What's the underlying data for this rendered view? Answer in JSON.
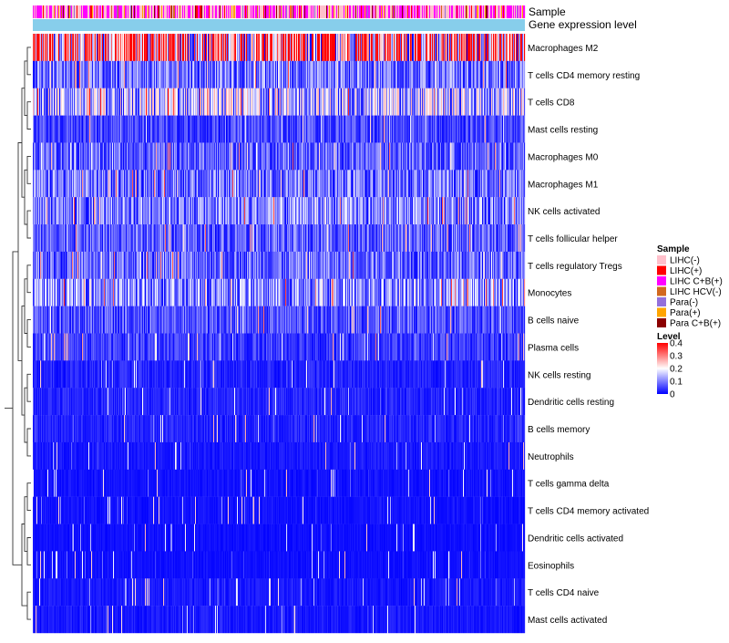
{
  "chart_data": {
    "type": "heatmap",
    "title": "",
    "annotation_tracks": [
      "Sample",
      "Gene expression level"
    ],
    "rows": [
      "Macrophages M2",
      "T cells CD4 memory resting",
      "T cells CD8",
      "Mast cells resting",
      "Macrophages M0",
      "Macrophages M1",
      "NK cells activated",
      "T cells follicular helper",
      "T cells regulatory  Tregs",
      "Monocytes",
      "B cells naive",
      "Plasma cells",
      "NK cells resting",
      "Dendritic cells resting",
      "B cells memory",
      "Neutrophils",
      "T cells gamma delta",
      "T cells CD4 memory activated",
      "Dendritic cells activated",
      "Eosinophils",
      "T cells CD4 naive",
      "Mast cells activated"
    ],
    "row_typical_level": [
      0.3,
      0.1,
      0.16,
      0.06,
      0.08,
      0.1,
      0.11,
      0.08,
      0.09,
      0.12,
      0.07,
      0.05,
      0.03,
      0.03,
      0.03,
      0.02,
      0.015,
      0.015,
      0.012,
      0.012,
      0.02,
      0.02
    ],
    "column_count": 540,
    "legend": {
      "sample": {
        "title": "Sample",
        "entries": [
          {
            "label": "LIHC(-)",
            "color": "#FFC0CB"
          },
          {
            "label": "LIHC(+)",
            "color": "#FF0000"
          },
          {
            "label": "LIHC C+B(+)",
            "color": "#FF00FF"
          },
          {
            "label": "LIHC HCV(-)",
            "color": "#D2691E"
          },
          {
            "label": "Para(-)",
            "color": "#9370DB"
          },
          {
            "label": "Para(+)",
            "color": "#FFA500"
          },
          {
            "label": "Para C+B(+)",
            "color": "#8B0000"
          }
        ]
      },
      "level": {
        "title": "Level",
        "range": [
          0,
          0.4
        ],
        "ticks": [
          "0.4",
          "0.3",
          "0.2",
          "0.1",
          "0"
        ],
        "tick_values": [
          0.4,
          0.3,
          0.2,
          0.1,
          0
        ]
      }
    },
    "colors": {
      "low": "#0000FF",
      "mid": "#FFFFFF",
      "high": "#FF0000",
      "expression_track": "#87CEEB"
    }
  }
}
